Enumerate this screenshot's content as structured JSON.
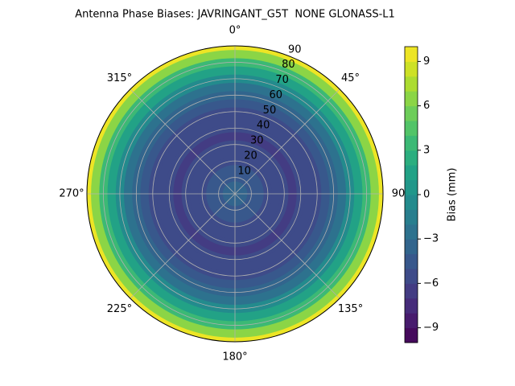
{
  "chart_data": {
    "type": "polar-contour",
    "title": "Antenna Phase Biases: JAVRINGANT_G5T  NONE GLONASS-L1",
    "colormap": "viridis",
    "zenith": [
      0,
      5,
      10,
      15,
      20,
      25,
      30,
      35,
      40,
      45,
      50,
      55,
      60,
      65,
      70,
      75,
      80,
      85,
      90
    ],
    "values": [
      -3.5,
      -3.8,
      -4.2,
      -4.8,
      -5.3,
      -5.7,
      -6,
      -6.1,
      -6,
      -5.7,
      -5.2,
      -4.5,
      -3.5,
      -2.2,
      -0.8,
      1,
      3.2,
      6,
      9.5
    ],
    "rlim": [
      0,
      90
    ],
    "rticks": [
      10,
      20,
      30,
      40,
      50,
      60,
      70,
      80,
      90
    ],
    "thetaticks": [
      {
        "value": 0,
        "label": "0°"
      },
      {
        "value": 45,
        "label": "45°"
      },
      {
        "value": 90,
        "label": "90"
      },
      {
        "value": 135,
        "label": "135°"
      },
      {
        "value": 180,
        "label": "180°"
      },
      {
        "value": 225,
        "label": "225°"
      },
      {
        "value": 270,
        "label": "270°"
      },
      {
        "value": 315,
        "label": "315°"
      }
    ],
    "grid": true,
    "colorbar": {
      "label": "Bias (mm)",
      "levels": [
        -10,
        -9,
        -8,
        -7,
        -6,
        -5,
        -4,
        -3,
        -2,
        -1,
        0,
        1,
        2,
        3,
        4,
        5,
        6,
        7,
        8,
        9,
        10
      ],
      "ylim": [
        -10,
        10
      ],
      "yticks": [
        {
          "value": -9,
          "label": "−9"
        },
        {
          "value": -6,
          "label": "−6"
        },
        {
          "value": -3,
          "label": "−3"
        },
        0,
        3,
        6,
        9
      ]
    }
  }
}
